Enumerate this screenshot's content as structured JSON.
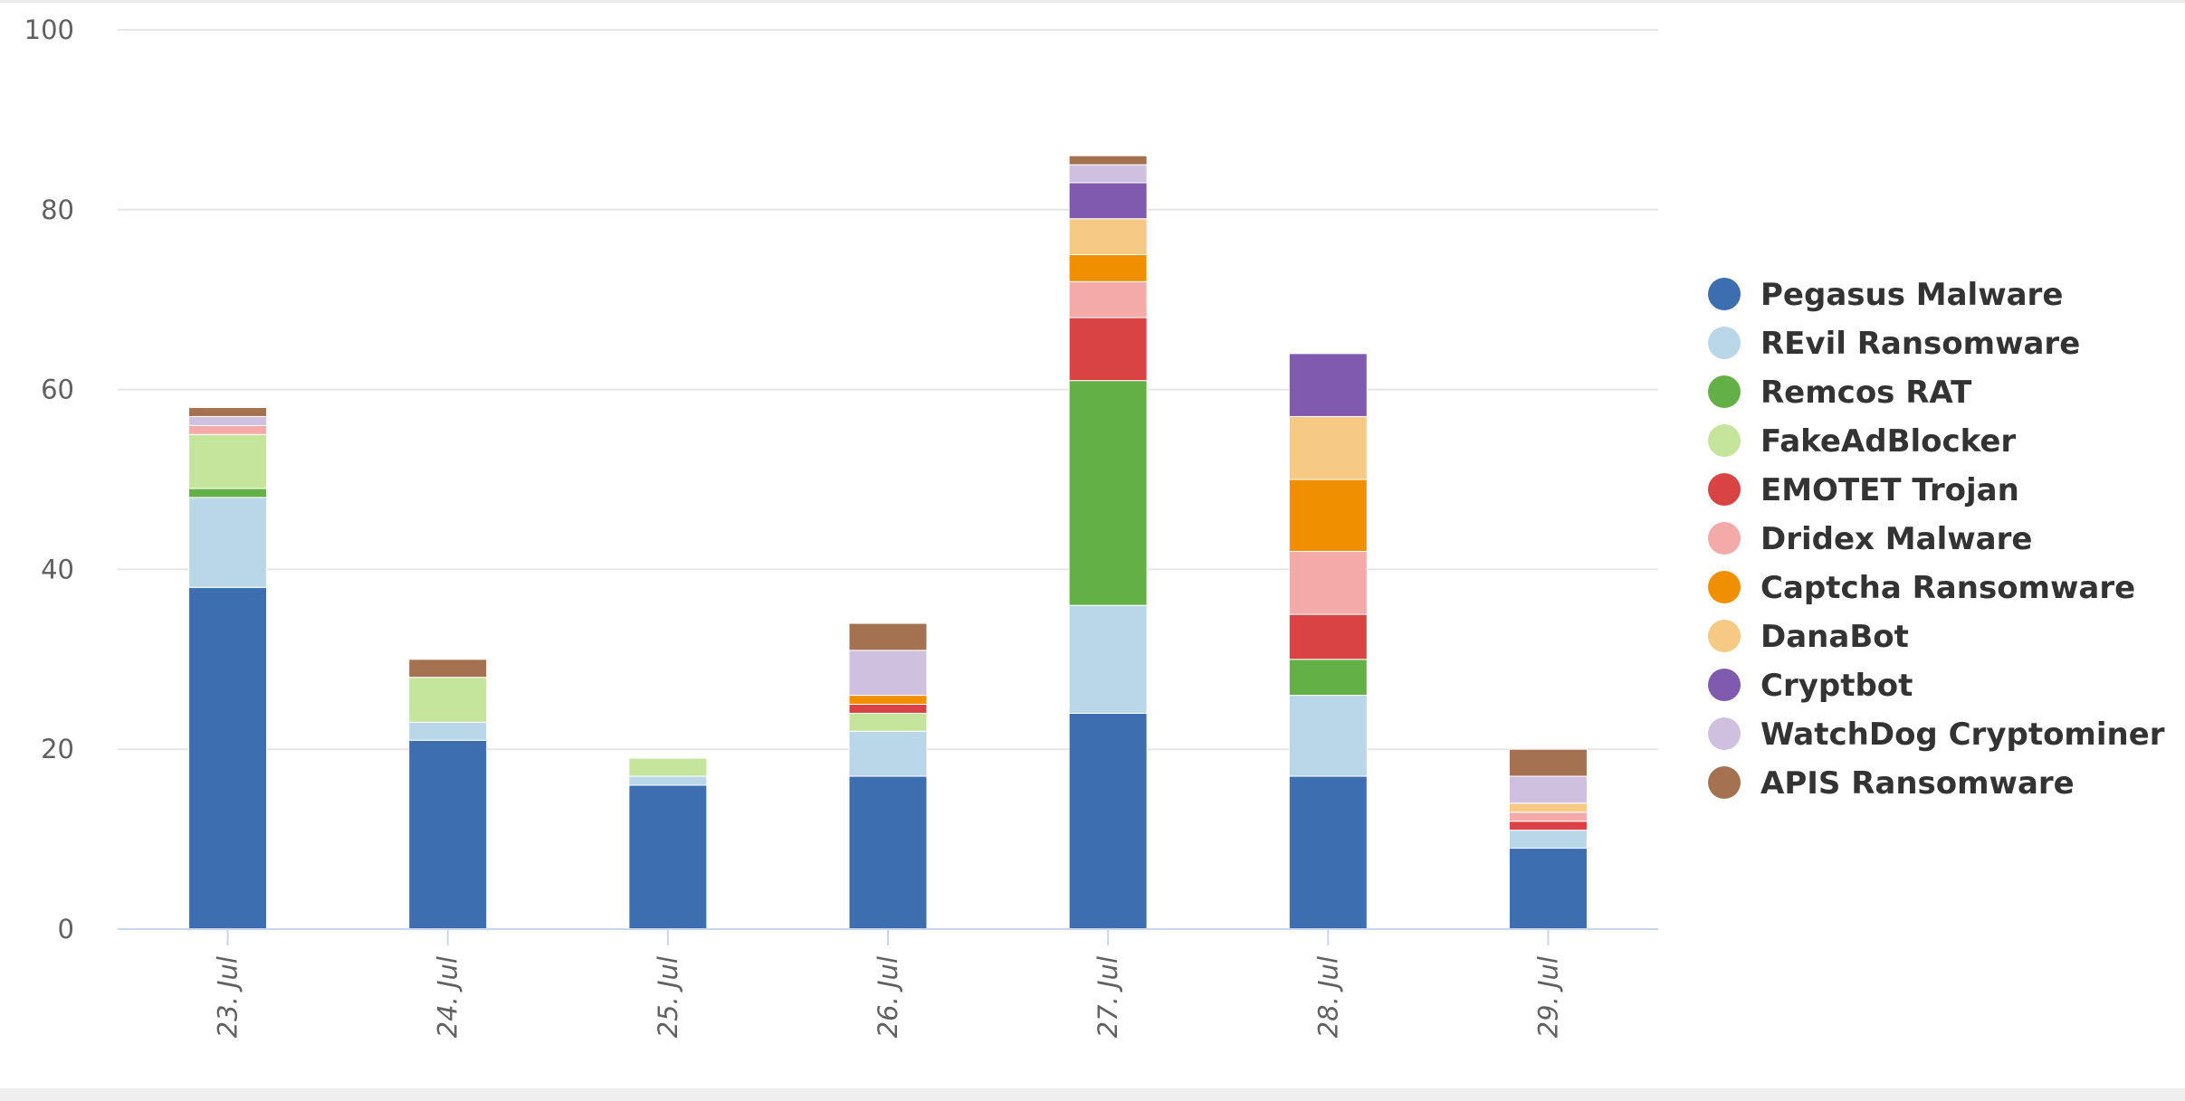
{
  "chart_data": {
    "type": "bar",
    "stacked": true,
    "categories": [
      "23. Jul",
      "24. Jul",
      "25. Jul",
      "26. Jul",
      "27. Jul",
      "28. Jul",
      "29. Jul"
    ],
    "ylim": [
      0,
      100
    ],
    "yticks": [
      0,
      20,
      40,
      60,
      80,
      100
    ],
    "grid": true,
    "legend_position": "right",
    "series": [
      {
        "name": "Pegasus Malware",
        "color": "#3d6eb0",
        "values": [
          38,
          21,
          16,
          17,
          24,
          17,
          9
        ]
      },
      {
        "name": "REvil Ransomware",
        "color": "#bad7ea",
        "values": [
          10,
          2,
          1,
          5,
          12,
          9,
          2
        ]
      },
      {
        "name": "Remcos RAT",
        "color": "#63b146",
        "values": [
          1,
          0,
          0,
          0,
          25,
          4,
          0
        ]
      },
      {
        "name": "FakeAdBlocker",
        "color": "#c5e59c",
        "values": [
          6,
          5,
          2,
          2,
          0,
          0,
          0
        ]
      },
      {
        "name": "EMOTET Trojan",
        "color": "#d94343",
        "values": [
          0,
          0,
          0,
          1,
          7,
          5,
          1
        ]
      },
      {
        "name": "Dridex Malware",
        "color": "#f3aaa9",
        "values": [
          1,
          0,
          0,
          0,
          4,
          7,
          1
        ]
      },
      {
        "name": "Captcha Ransomware",
        "color": "#f09000",
        "values": [
          0,
          0,
          0,
          1,
          3,
          8,
          0
        ]
      },
      {
        "name": "DanaBot",
        "color": "#f6ca84",
        "values": [
          0,
          0,
          0,
          0,
          4,
          7,
          1
        ]
      },
      {
        "name": "Cryptbot",
        "color": "#7f5aaf",
        "values": [
          0,
          0,
          0,
          0,
          4,
          7,
          0
        ]
      },
      {
        "name": "WatchDog Cryptominer",
        "color": "#d0c0e0",
        "values": [
          1,
          0,
          0,
          5,
          2,
          0,
          3
        ]
      },
      {
        "name": "APIS Ransomware",
        "color": "#a47250",
        "values": [
          1,
          2,
          0,
          3,
          1,
          0,
          3
        ]
      }
    ]
  }
}
